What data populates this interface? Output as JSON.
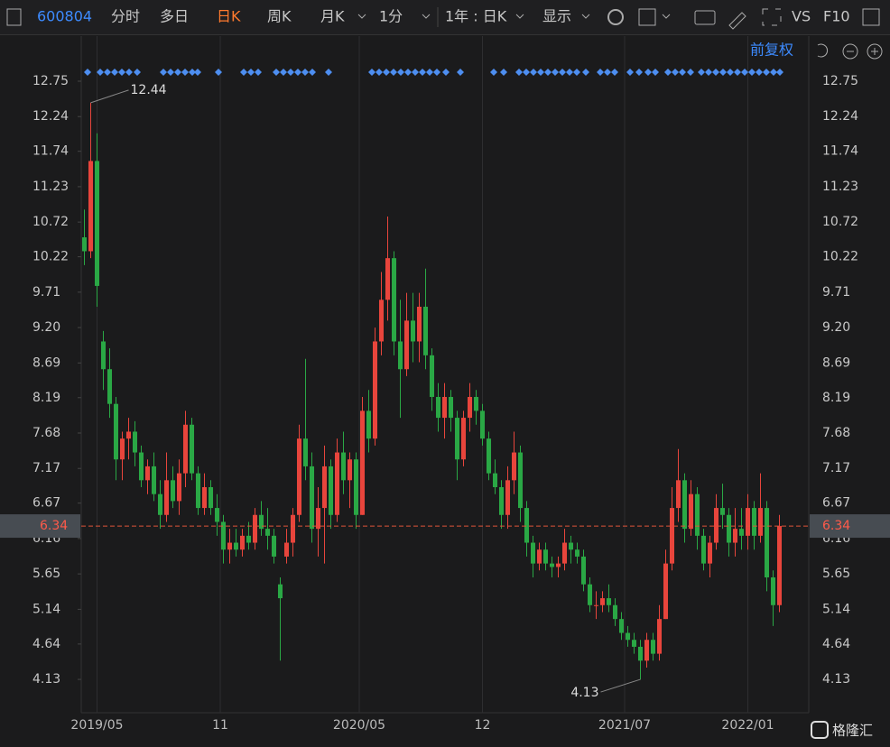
{
  "toolbar": {
    "code": "600804",
    "tabs": [
      "分时",
      "多日",
      "日K",
      "周K",
      "月K",
      "1分",
      "1年 : 日K",
      "显示"
    ],
    "adjust": "前复权",
    "vs": "VS",
    "f10": "F10",
    "brand": "格隆汇"
  },
  "chart_data": {
    "type": "candlestick",
    "up_color": "#e8453c",
    "down_color": "#2aa845",
    "xlim": [
      0,
      115
    ],
    "xticks": [
      {
        "value": 2.5,
        "label": "2019/05"
      },
      {
        "value": 22,
        "label": "11"
      },
      {
        "value": 44,
        "label": "2020/05"
      },
      {
        "value": 63.5,
        "label": "12"
      },
      {
        "value": 86,
        "label": "2021/07"
      },
      {
        "value": 105.5,
        "label": "2022/01"
      }
    ],
    "ylim": [
      3.65,
      13.01
    ],
    "yticks": [
      12.75,
      12.24,
      11.74,
      11.23,
      10.72,
      10.22,
      9.71,
      {
        "value": 9.2,
        "label": "9.20"
      },
      8.69,
      8.19,
      7.68,
      7.17,
      6.67,
      6.16,
      5.65,
      5.14,
      4.64,
      4.13
    ],
    "last_price": 6.34,
    "annotations": [
      12.44,
      4.13
    ],
    "values": [
      [
        10.5,
        10.9,
        10.1,
        10.3
      ],
      [
        10.3,
        12.44,
        10.2,
        11.6
      ],
      [
        11.6,
        12.0,
        9.5,
        9.8
      ],
      [
        9.0,
        9.15,
        8.3,
        8.6
      ],
      [
        8.6,
        8.9,
        7.9,
        8.1
      ],
      [
        8.1,
        8.2,
        7.0,
        7.3
      ],
      [
        7.3,
        7.7,
        7.0,
        7.6
      ],
      [
        7.6,
        7.9,
        7.3,
        7.7
      ],
      [
        7.7,
        7.85,
        7.2,
        7.4
      ],
      [
        7.4,
        7.5,
        6.9,
        7.0
      ],
      [
        7.0,
        7.3,
        6.8,
        7.2
      ],
      [
        7.2,
        7.4,
        6.7,
        6.8
      ],
      [
        6.8,
        7.0,
        6.3,
        6.5
      ],
      [
        6.5,
        7.4,
        6.4,
        7.0
      ],
      [
        7.0,
        7.2,
        6.6,
        6.7
      ],
      [
        6.7,
        7.3,
        6.5,
        7.1
      ],
      [
        7.1,
        8.0,
        6.9,
        7.8
      ],
      [
        7.8,
        7.9,
        7.0,
        7.1
      ],
      [
        7.1,
        7.2,
        6.5,
        6.6
      ],
      [
        6.6,
        7.1,
        6.5,
        6.9
      ],
      [
        6.9,
        7.0,
        6.5,
        6.6
      ],
      [
        6.6,
        6.8,
        6.2,
        6.4
      ],
      [
        6.4,
        6.5,
        5.8,
        6.0
      ],
      [
        6.0,
        6.3,
        5.8,
        6.1
      ],
      [
        6.1,
        6.3,
        5.9,
        6.0
      ],
      [
        6.0,
        6.3,
        5.9,
        6.2
      ],
      [
        6.2,
        6.4,
        6.0,
        6.1
      ],
      [
        6.1,
        6.6,
        6.0,
        6.5
      ],
      [
        6.5,
        6.7,
        6.2,
        6.3
      ],
      [
        6.3,
        6.6,
        6.0,
        6.2
      ],
      [
        6.2,
        6.3,
        5.8,
        5.9
      ],
      [
        5.5,
        5.6,
        4.4,
        5.3
      ],
      [
        5.9,
        6.3,
        5.8,
        6.1
      ],
      [
        6.1,
        6.6,
        5.9,
        6.5
      ],
      [
        6.5,
        7.8,
        6.4,
        7.6
      ],
      [
        7.6,
        8.75,
        7.0,
        7.2
      ],
      [
        7.2,
        7.4,
        6.1,
        6.3
      ],
      [
        6.3,
        6.9,
        5.9,
        6.6
      ],
      [
        6.6,
        7.5,
        5.8,
        7.2
      ],
      [
        7.2,
        7.3,
        6.3,
        6.5
      ],
      [
        6.5,
        7.6,
        6.4,
        7.4
      ],
      [
        7.4,
        7.7,
        6.8,
        7.0
      ],
      [
        7.0,
        7.4,
        6.6,
        7.3
      ],
      [
        7.3,
        7.4,
        6.3,
        6.5
      ],
      [
        6.5,
        8.2,
        6.5,
        8.0
      ],
      [
        8.0,
        8.3,
        7.4,
        7.6
      ],
      [
        7.6,
        9.2,
        7.5,
        9.0
      ],
      [
        9.0,
        10.0,
        8.8,
        9.6
      ],
      [
        9.6,
        10.8,
        9.3,
        10.2
      ],
      [
        10.2,
        10.3,
        8.8,
        9.0
      ],
      [
        9.0,
        9.6,
        7.9,
        8.6
      ],
      [
        8.6,
        9.7,
        8.5,
        9.3
      ],
      [
        9.3,
        9.7,
        8.7,
        9.0
      ],
      [
        9.0,
        9.7,
        8.7,
        9.5
      ],
      [
        9.5,
        10.05,
        8.6,
        8.8
      ],
      [
        8.8,
        8.9,
        8.0,
        8.2
      ],
      [
        8.2,
        8.4,
        7.7,
        7.9
      ],
      [
        7.9,
        8.4,
        7.6,
        8.2
      ],
      [
        8.2,
        8.3,
        7.7,
        7.9
      ],
      [
        7.9,
        8.0,
        7.0,
        7.3
      ],
      [
        7.3,
        8.0,
        7.2,
        7.9
      ],
      [
        7.9,
        8.4,
        7.7,
        8.2
      ],
      [
        8.2,
        8.3,
        7.8,
        8.0
      ],
      [
        8.0,
        8.1,
        7.5,
        7.6
      ],
      [
        7.6,
        7.7,
        7.0,
        7.1
      ],
      [
        7.1,
        7.3,
        6.8,
        6.9
      ],
      [
        6.9,
        7.0,
        6.3,
        6.5
      ],
      [
        6.5,
        7.2,
        6.3,
        7.0
      ],
      [
        7.0,
        7.7,
        6.8,
        7.4
      ],
      [
        7.4,
        7.5,
        6.4,
        6.6
      ],
      [
        6.6,
        6.7,
        5.9,
        6.1
      ],
      [
        6.1,
        6.2,
        5.6,
        5.8
      ],
      [
        5.8,
        6.1,
        5.7,
        6.0
      ],
      [
        6.0,
        6.1,
        5.7,
        5.8
      ],
      [
        5.8,
        5.9,
        5.6,
        5.75
      ],
      [
        5.75,
        5.9,
        5.6,
        5.8
      ],
      [
        5.8,
        6.3,
        5.7,
        6.1
      ],
      [
        6.1,
        6.2,
        5.8,
        6.0
      ],
      [
        6.0,
        6.1,
        5.8,
        5.9
      ],
      [
        5.9,
        6.0,
        5.4,
        5.5
      ],
      [
        5.5,
        5.6,
        5.1,
        5.2
      ],
      [
        5.2,
        5.4,
        5.0,
        5.2
      ],
      [
        5.2,
        5.4,
        5.1,
        5.3
      ],
      [
        5.3,
        5.5,
        5.1,
        5.2
      ],
      [
        5.2,
        5.3,
        4.9,
        5.0
      ],
      [
        5.0,
        5.1,
        4.7,
        4.8
      ],
      [
        4.8,
        4.9,
        4.6,
        4.7
      ],
      [
        4.7,
        4.8,
        4.5,
        4.6
      ],
      [
        4.6,
        4.7,
        4.13,
        4.4
      ],
      [
        4.4,
        4.8,
        4.3,
        4.7
      ],
      [
        4.7,
        4.8,
        4.4,
        4.5
      ],
      [
        4.5,
        5.2,
        4.4,
        5.0
      ],
      [
        5.0,
        6.0,
        5.0,
        5.8
      ],
      [
        5.8,
        6.9,
        5.7,
        6.6
      ],
      [
        6.6,
        7.45,
        6.4,
        7.0
      ],
      [
        7.0,
        7.1,
        6.1,
        6.3
      ],
      [
        6.3,
        7.0,
        6.2,
        6.8
      ],
      [
        6.8,
        6.9,
        6.0,
        6.2
      ],
      [
        6.2,
        6.3,
        5.7,
        5.8
      ],
      [
        5.8,
        6.2,
        5.6,
        6.1
      ],
      [
        6.1,
        6.8,
        6.0,
        6.6
      ],
      [
        6.6,
        6.95,
        6.3,
        6.5
      ],
      [
        6.5,
        6.6,
        5.9,
        6.1
      ],
      [
        6.1,
        6.6,
        5.9,
        6.3
      ],
      [
        6.3,
        6.6,
        6.0,
        6.2
      ],
      [
        6.2,
        6.8,
        6.0,
        6.6
      ],
      [
        6.6,
        6.7,
        6.0,
        6.2
      ],
      [
        6.2,
        7.1,
        6.1,
        6.6
      ],
      [
        6.6,
        6.7,
        5.4,
        5.6
      ],
      [
        5.6,
        5.7,
        4.9,
        5.2
      ],
      [
        5.2,
        6.5,
        5.1,
        6.34
      ]
    ]
  }
}
